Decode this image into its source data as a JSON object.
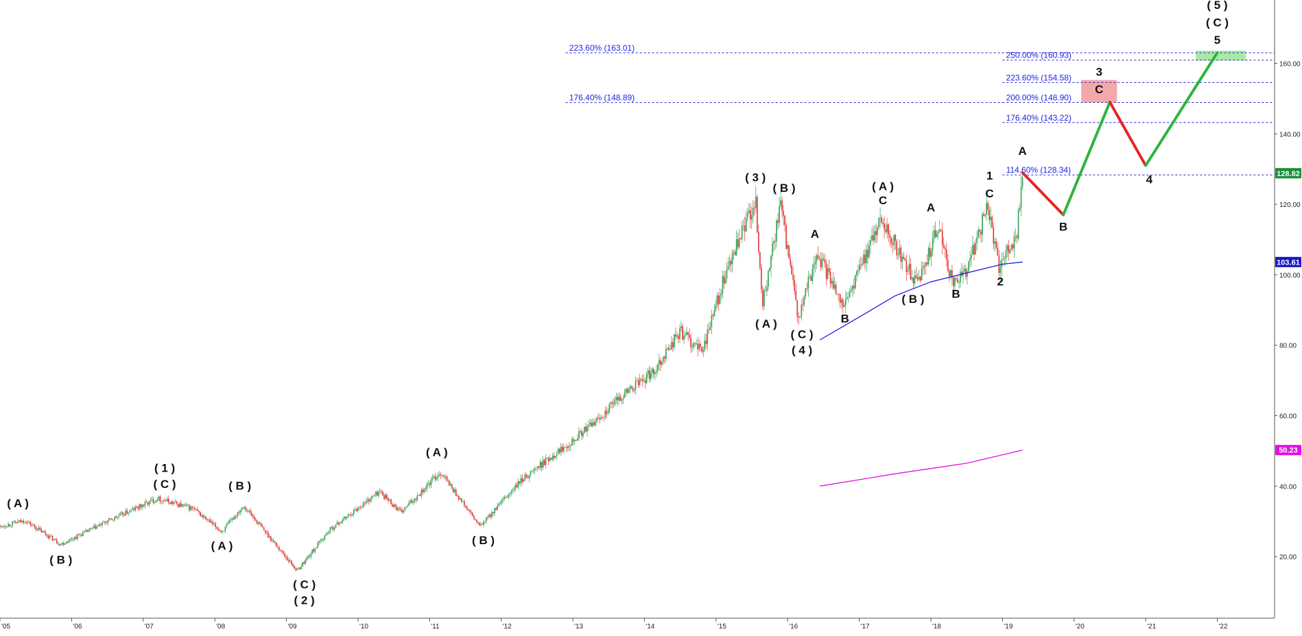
{
  "chart_data": {
    "type": "candlestick",
    "title": "",
    "xlabel": "",
    "ylabel": "",
    "xlim": [
      2005.0,
      2022.8
    ],
    "ylim": [
      2.5,
      178
    ],
    "y_ticks": [
      "20.00",
      "40.00",
      "60.00",
      "80.00",
      "100.00",
      "120.00",
      "140.00",
      "160.00"
    ],
    "y_tick_values": [
      20,
      40,
      60,
      80,
      100,
      120,
      140,
      160
    ],
    "x_ticks": [
      "'05",
      "'06",
      "'07",
      "'08",
      "'09",
      "'10",
      "'11",
      "'12",
      "'13",
      "'14",
      "'15",
      "'16",
      "'17",
      "'18",
      "'19",
      "'20",
      "'21",
      "'22"
    ],
    "x_tick_values": [
      2005,
      2006,
      2007,
      2008,
      2009,
      2010,
      2011,
      2012,
      2013,
      2014,
      2015,
      2016,
      2017,
      2018,
      2019,
      2020,
      2021,
      2022
    ],
    "colors": {
      "up": "#2e9e4f",
      "down": "#e03030",
      "fib": "#1f1fe0",
      "ma_blue": "#1a1ad8",
      "ma_magenta": "#e010e0",
      "proj_up": "#2db53d",
      "proj_down": "#e52525"
    },
    "price_path": [
      [
        2005.0,
        28.5
      ],
      [
        2005.35,
        30.2
      ],
      [
        2005.85,
        23.5
      ],
      [
        2006.5,
        30.0
      ],
      [
        2007.2,
        36.5
      ],
      [
        2007.7,
        33.5
      ],
      [
        2008.1,
        27.0
      ],
      [
        2008.4,
        34.5
      ],
      [
        2009.15,
        16.0
      ],
      [
        2009.6,
        27.5
      ],
      [
        2010.3,
        38.5
      ],
      [
        2010.6,
        32.5
      ],
      [
        2011.15,
        44.0
      ],
      [
        2011.7,
        28.5
      ],
      [
        2012.3,
        42.0
      ],
      [
        2012.8,
        50.0
      ],
      [
        2013.3,
        58.0
      ],
      [
        2013.7,
        66.0
      ],
      [
        2014.1,
        72.0
      ],
      [
        2014.5,
        84.0
      ],
      [
        2014.8,
        78.0
      ],
      [
        2015.1,
        98.0
      ],
      [
        2015.55,
        121.5
      ],
      [
        2015.65,
        91.0
      ],
      [
        2015.9,
        120.0
      ],
      [
        2016.15,
        87.0
      ],
      [
        2016.4,
        106.0
      ],
      [
        2016.8,
        91.5
      ],
      [
        2017.3,
        116.0
      ],
      [
        2017.8,
        97.0
      ],
      [
        2018.1,
        113.5
      ],
      [
        2018.3,
        98.0
      ],
      [
        2018.5,
        101.0
      ],
      [
        2018.8,
        120.0
      ],
      [
        2018.95,
        101.0
      ],
      [
        2019.2,
        112.0
      ],
      [
        2019.28,
        129.0
      ]
    ],
    "moving_averages": [
      {
        "name": "",
        "value_label": "103.61",
        "values": [
          [
            2016.45,
            81.5
          ],
          [
            2017.0,
            88.0
          ],
          [
            2017.5,
            94.0
          ],
          [
            2018.0,
            98.0
          ],
          [
            2018.5,
            100.5
          ],
          [
            2019.0,
            103.0
          ],
          [
            2019.28,
            103.61
          ]
        ],
        "color": "#1a1ad8"
      },
      {
        "name": "",
        "value_label": "50.23",
        "values": [
          [
            2016.45,
            40.0
          ],
          [
            2017.5,
            43.5
          ],
          [
            2018.5,
            46.5
          ],
          [
            2019.28,
            50.23
          ]
        ],
        "color": "#e010e0"
      }
    ],
    "projection": [
      {
        "from": [
          2019.28,
          129.0
        ],
        "to": [
          2019.85,
          117.0
        ],
        "direction": "down"
      },
      {
        "from": [
          2019.85,
          117.0
        ],
        "to": [
          2020.5,
          149.0
        ],
        "direction": "up"
      },
      {
        "from": [
          2020.5,
          149.0
        ],
        "to": [
          2021.0,
          131.0
        ],
        "direction": "down"
      },
      {
        "from": [
          2021.0,
          131.0
        ],
        "to": [
          2022.0,
          163.0
        ],
        "direction": "up"
      }
    ],
    "zones": [
      {
        "x0": 2020.1,
        "x1": 2020.6,
        "y0": 148.9,
        "y1": 155.3,
        "color": "#f4a9a9"
      },
      {
        "x0": 2021.7,
        "x1": 2022.4,
        "y0": 160.8,
        "y1": 163.6,
        "color": "#a8eaa4"
      }
    ],
    "fib_levels": [
      {
        "label": "223.60% (163.01)",
        "y": 163.01,
        "x0": 2012.9,
        "x1": 2022.8,
        "label_x": 2012.95
      },
      {
        "label": "250.00% (160.93)",
        "y": 160.93,
        "x0": 2019.0,
        "x1": 2022.8,
        "label_x": 2019.05
      },
      {
        "label": "223.60% (154.58)",
        "y": 154.58,
        "x0": 2019.0,
        "x1": 2022.8,
        "label_x": 2019.05
      },
      {
        "label": "176.40% (148.89)",
        "y": 148.89,
        "x0": 2012.9,
        "x1": 2019.0,
        "label_x": 2012.95
      },
      {
        "label": "200.00% (148.90)",
        "y": 148.9,
        "x0": 2019.0,
        "x1": 2022.8,
        "label_x": 2019.05
      },
      {
        "label": "176.40% (143.22)",
        "y": 143.22,
        "x0": 2019.0,
        "x1": 2022.8,
        "label_x": 2019.05
      },
      {
        "label": "114.60% (128.34)",
        "y": 128.34,
        "x0": 2019.0,
        "x1": 2022.8,
        "label_x": 2019.05
      }
    ],
    "price_badges": [
      {
        "label": "128.82",
        "y": 128.82,
        "color": "#1a8c3a"
      },
      {
        "label": "103.61",
        "y": 103.61,
        "color": "#1818c8"
      },
      {
        "label": "50.23",
        "y": 50.23,
        "color": "#e010e0"
      }
    ],
    "wave_labels": [
      {
        "text": "( A )",
        "x": 2005.25,
        "y": 34.0
      },
      {
        "text": "( B )",
        "x": 2005.85,
        "y": 18.0
      },
      {
        "text": "( 1 )",
        "x": 2007.3,
        "y": 44.0
      },
      {
        "text": "( C )",
        "x": 2007.3,
        "y": 39.5
      },
      {
        "text": "( B )",
        "x": 2008.35,
        "y": 39.0
      },
      {
        "text": "( A )",
        "x": 2008.1,
        "y": 22.0
      },
      {
        "text": "( C )",
        "x": 2009.25,
        "y": 11.0
      },
      {
        "text": "( 2 )",
        "x": 2009.25,
        "y": 6.5
      },
      {
        "text": "( A )",
        "x": 2011.1,
        "y": 48.5
      },
      {
        "text": "( B )",
        "x": 2011.75,
        "y": 23.5
      },
      {
        "text": "( 3 )",
        "x": 2015.55,
        "y": 126.5
      },
      {
        "text": "( B )",
        "x": 2015.95,
        "y": 123.5
      },
      {
        "text": "( A )",
        "x": 2015.7,
        "y": 85.0
      },
      {
        "text": "( C )",
        "x": 2016.2,
        "y": 82.0
      },
      {
        "text": "( 4 )",
        "x": 2016.2,
        "y": 77.5
      },
      {
        "text": "A",
        "x": 2016.38,
        "y": 110.5
      },
      {
        "text": "B",
        "x": 2016.8,
        "y": 86.5
      },
      {
        "text": "( A )",
        "x": 2017.33,
        "y": 124.0
      },
      {
        "text": "C",
        "x": 2017.33,
        "y": 120.0
      },
      {
        "text": "( B )",
        "x": 2017.75,
        "y": 92.0
      },
      {
        "text": "A",
        "x": 2018.0,
        "y": 118.0
      },
      {
        "text": "B",
        "x": 2018.35,
        "y": 93.5
      },
      {
        "text": "1",
        "x": 2018.82,
        "y": 127.0
      },
      {
        "text": "C",
        "x": 2018.82,
        "y": 122.0
      },
      {
        "text": "2",
        "x": 2018.97,
        "y": 97.0
      },
      {
        "text": "A",
        "x": 2019.28,
        "y": 134.0
      },
      {
        "text": "B",
        "x": 2019.85,
        "y": 112.5
      },
      {
        "text": "3",
        "x": 2020.35,
        "y": 156.5
      },
      {
        "text": "C",
        "x": 2020.35,
        "y": 151.5
      },
      {
        "text": "4",
        "x": 2021.05,
        "y": 126.0
      },
      {
        "text": "( 5 )",
        "x": 2022.0,
        "y": 175.5
      },
      {
        "text": "( C )",
        "x": 2022.0,
        "y": 170.5
      },
      {
        "text": "5",
        "x": 2022.0,
        "y": 165.5
      }
    ]
  }
}
